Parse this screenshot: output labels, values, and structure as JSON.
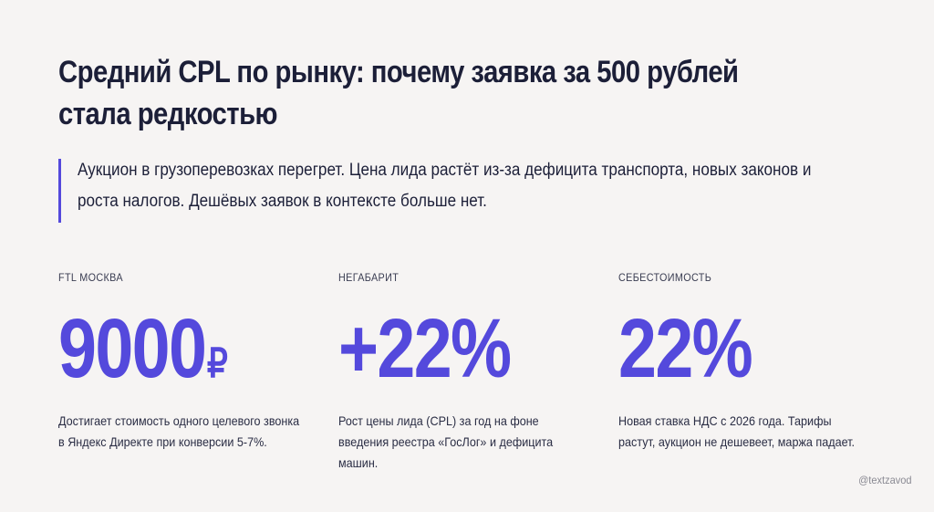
{
  "title": "Средний CPL по рынку: почему заявка за 500 рублей стала редкостью",
  "lead": "Аукцион в грузоперевозках перегрет. Цена лида растёт из-за дефицита транспорта, новых законов и роста налогов. Дешёвых заявок в контексте больше нет.",
  "accent_color": "#5449dc",
  "stats": [
    {
      "label": "FTL МОСКВА",
      "value": "9000",
      "unit": "₽",
      "description": "Достигает стоимость одного целевого звонка в Яндекс Директе при конверсии 5-7%."
    },
    {
      "label": "НЕГАБАРИТ",
      "value": "+22%",
      "unit": "",
      "description": "Рост цены лида (CPL) за год на фоне введения реестра «ГосЛог» и дефицита машин."
    },
    {
      "label": "СЕБЕСТОИМОСТЬ",
      "value": "22%",
      "unit": "",
      "description": "Новая ставка НДС с 2026 года. Тарифы растут, аукцион не дешевеет, маржа падает."
    }
  ],
  "watermark": "@textzavod"
}
